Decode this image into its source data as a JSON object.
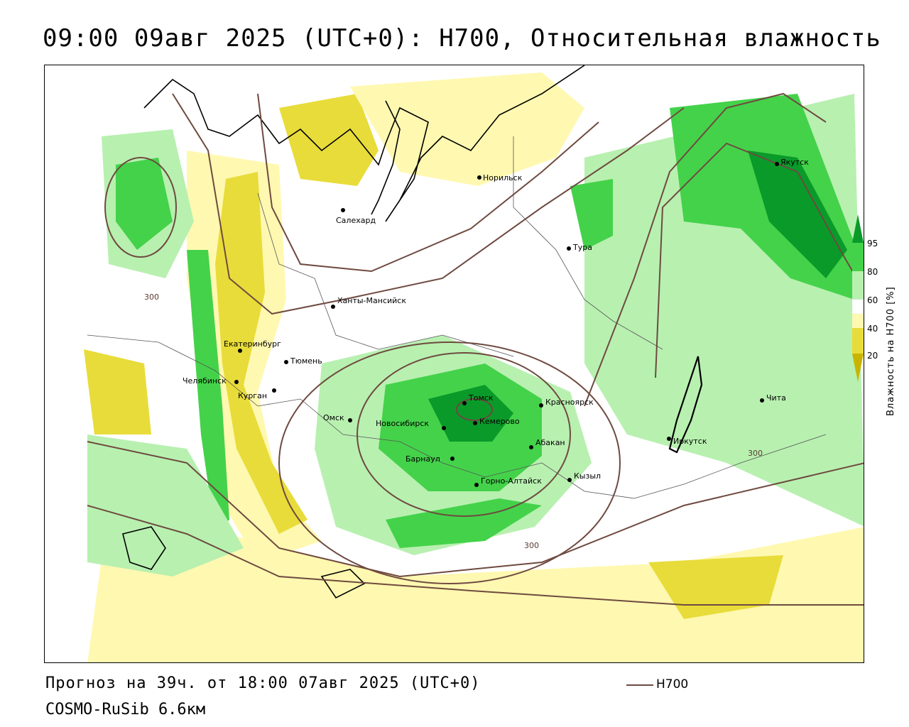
{
  "title": "09:00 09авг 2025 (UTC+0): H700, Относительная влажность",
  "footer": {
    "forecast": "Прогноз на 39ч. от 18:00 07авг 2025 (UTC+0)",
    "model": "COSMO-RuSib 6.6км"
  },
  "legend": {
    "contour_label": "H700"
  },
  "colorbar": {
    "title": "Влажность на H700 [%]",
    "ticks": [
      "95",
      "80",
      "60",
      "40",
      "20"
    ],
    "colors": {
      "below_20": "#c8b400",
      "c20_40": "#e8dc3a",
      "c40_50": "#fff8b0",
      "c50_60": "#ffffff",
      "c60_80": "#b8f0b0",
      "c80_95": "#44d24a",
      "above_95": "#0a9a2a"
    }
  },
  "map": {
    "contour_color": "#6e4a40",
    "isoline_labels": [
      "300",
      "300",
      "300"
    ],
    "cities": [
      {
        "name": "Якутск"
      },
      {
        "name": "Норильск"
      },
      {
        "name": "Салехард"
      },
      {
        "name": "Тура"
      },
      {
        "name": "Ханты-Мансийск"
      },
      {
        "name": "Екатеринбург"
      },
      {
        "name": "Тюмень"
      },
      {
        "name": "Челябинск"
      },
      {
        "name": "Курган"
      },
      {
        "name": "Омск"
      },
      {
        "name": "Новосибирск"
      },
      {
        "name": "Томск"
      },
      {
        "name": "Кемерово"
      },
      {
        "name": "Красноярск"
      },
      {
        "name": "Абакан"
      },
      {
        "name": "Барнаул"
      },
      {
        "name": "Горно-Алтайск"
      },
      {
        "name": "Кызыл"
      },
      {
        "name": "Иркутск"
      },
      {
        "name": "Чита"
      }
    ]
  }
}
